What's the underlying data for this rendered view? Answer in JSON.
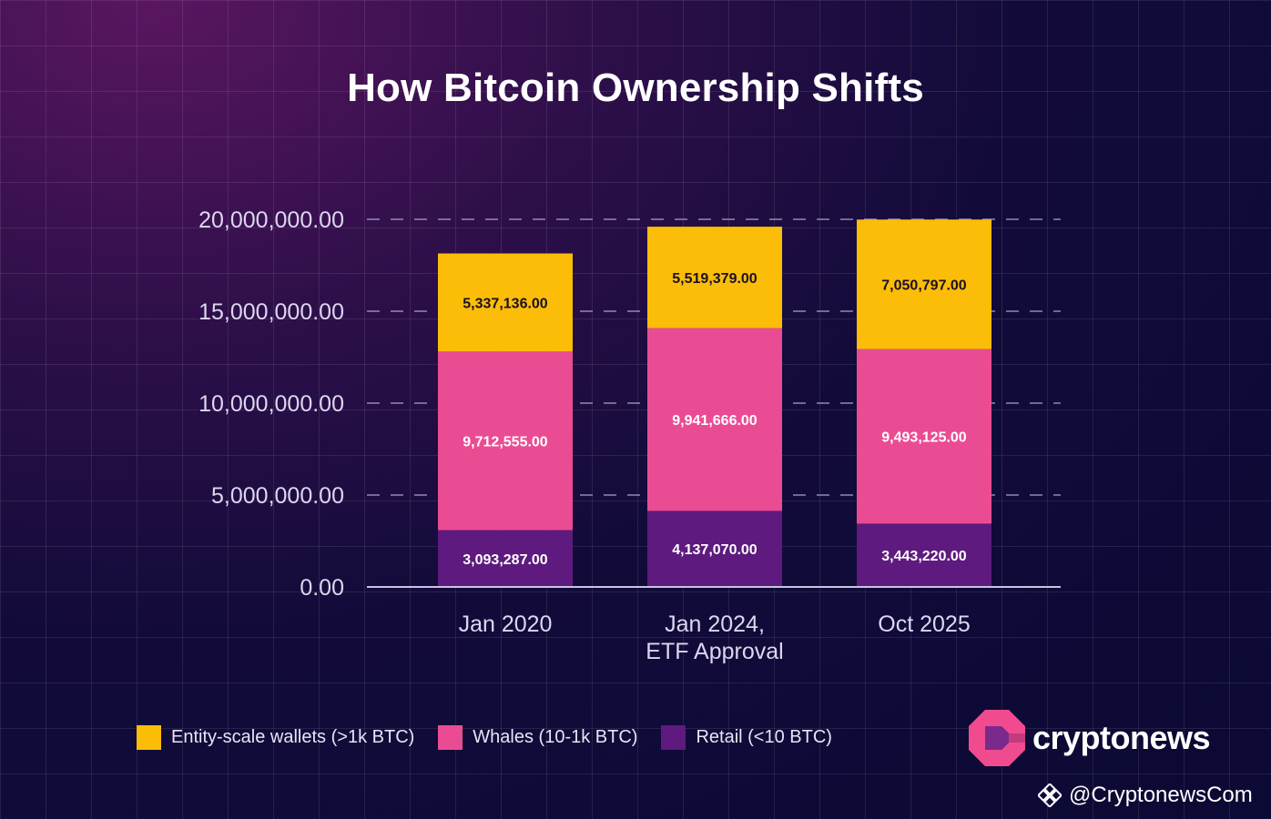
{
  "title": "How Bitcoin Ownership Shifts",
  "chart_data": {
    "type": "bar",
    "stacked": true,
    "title": "How Bitcoin Ownership Shifts",
    "categories": [
      [
        "Jan 2020"
      ],
      [
        "Jan 2024,",
        "ETF Approval"
      ],
      [
        "Oct 2025"
      ]
    ],
    "series": [
      {
        "name": "Retail (<10 BTC)",
        "color": "#5e1a7e",
        "values": [
          3093287,
          4137070,
          3443220
        ],
        "labels": [
          "3,093,287.00",
          "4,137,070.00",
          "3,443,220.00"
        ],
        "label_color": "#ffffff"
      },
      {
        "name": "Whales (10-1k BTC)",
        "color": "#ea4c93",
        "values": [
          9712555,
          9941666,
          9493125
        ],
        "labels": [
          "9,712,555.00",
          "9,941,666.00",
          "9,493,125.00"
        ],
        "label_color": "#ffffff"
      },
      {
        "name": "Entity-scale wallets (>1k BTC)",
        "color": "#fbbd08",
        "values": [
          5337136,
          5519379,
          7050797
        ],
        "labels": [
          "5,337,136.00",
          "5,519,379.00",
          "7,050,797.00"
        ],
        "label_color": "#1a1026"
      }
    ],
    "yticks": [
      0,
      5000000,
      10000000,
      15000000,
      20000000
    ],
    "ytick_labels": [
      "0.00",
      "5,000,000.00",
      "10,000,000.00",
      "15,000,000.00",
      "20,000,000.00"
    ],
    "ylim": [
      0,
      20000000
    ],
    "grid": "horizontal-dashed",
    "legend_position": "bottom-left"
  },
  "legend": [
    {
      "label": "Entity-scale wallets (>1k BTC)",
      "color": "#fbbd08"
    },
    {
      "label": "Whales (10-1k BTC)",
      "color": "#ea4c93"
    },
    {
      "label": "Retail (<10 BTC)",
      "color": "#5e1a7e"
    }
  ],
  "brand": {
    "name": "cryptonews",
    "logo_icon": "cryptonews-logo-icon",
    "accent": "#f04b8f"
  },
  "handle": {
    "text": "@CryptonewsCom",
    "icon": "binance-icon"
  }
}
